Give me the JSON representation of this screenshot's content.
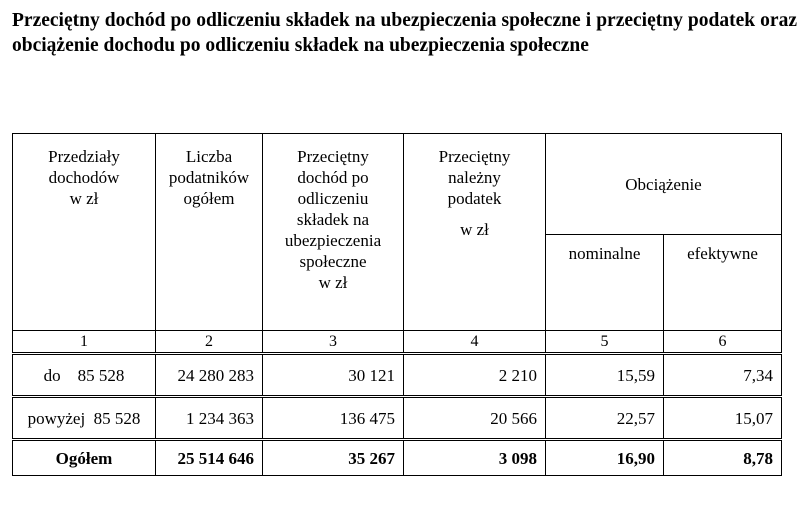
{
  "title": "Przeciętny dochód po odliczeniu składek na ubezpieczenia społeczne i przeciętny podatek oraz obciążenie dochodu po odliczeniu składek na ubezpieczenia społeczne",
  "headers": {
    "c1": [
      "Przedziały",
      "dochodów",
      "w zł"
    ],
    "c2": [
      "Liczba",
      "podatników",
      "ogółem"
    ],
    "c3": [
      "Przeciętny",
      "dochód po",
      "odliczeniu",
      "składek na",
      "ubezpieczenia",
      "społeczne",
      "w zł"
    ],
    "c4": [
      "Przeciętny",
      "należny",
      "podatek",
      "w zł"
    ],
    "group": "Obciążenie",
    "c5": "nominalne",
    "c6": "efektywne"
  },
  "column_numbers": [
    "1",
    "2",
    "3",
    "4",
    "5",
    "6"
  ],
  "rows": [
    [
      "do    85 528",
      "24 280 283",
      "30 121",
      "2 210",
      "15,59",
      "7,34"
    ],
    [
      "powyżej  85 528",
      "1 234 363",
      "136 475",
      "20 566",
      "22,57",
      "15,07"
    ],
    [
      "Ogółem",
      "25 514 646",
      "35 267",
      "3 098",
      "16,90",
      "8,78"
    ]
  ]
}
